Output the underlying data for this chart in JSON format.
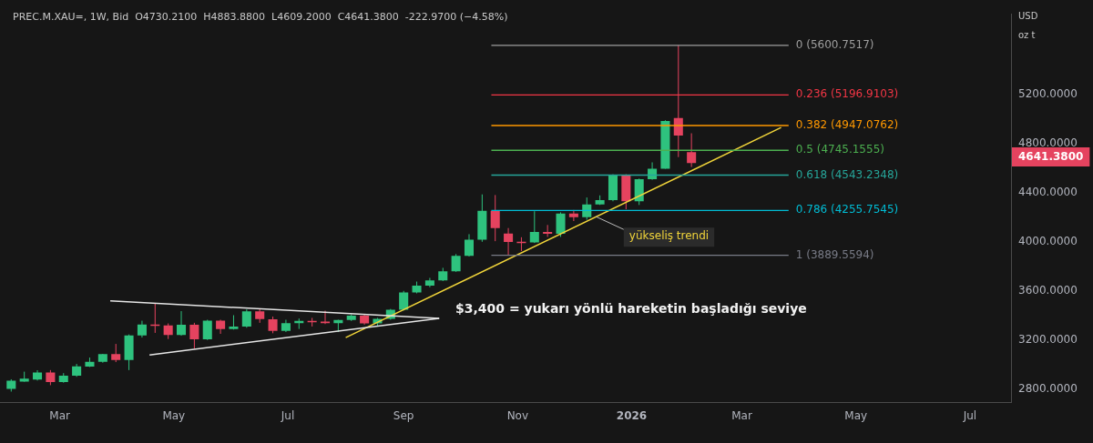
{
  "chart_data": {
    "type": "candlestick",
    "title": "PREC.M.XAU=, 1W, Bid  O4730.2100  H4883.8800  L4609.2000  C4641.3800  -222.9700 (−4.58%)",
    "x": [
      "2025-02-03",
      "2025-02-10",
      "2025-02-17",
      "2025-02-24",
      "2025-03-03",
      "2025-03-10",
      "2025-03-17",
      "2025-03-24",
      "2025-03-31",
      "2025-04-07",
      "2025-04-14",
      "2025-04-21",
      "2025-04-28",
      "2025-05-05",
      "2025-05-12",
      "2025-05-19",
      "2025-05-26",
      "2025-06-02",
      "2025-06-09",
      "2025-06-16",
      "2025-06-23",
      "2025-06-30",
      "2025-07-07",
      "2025-07-14",
      "2025-07-21",
      "2025-07-28",
      "2025-08-04",
      "2025-08-11",
      "2025-08-18",
      "2025-08-25",
      "2025-09-01",
      "2025-09-08",
      "2025-09-15",
      "2025-09-22",
      "2025-09-29",
      "2025-10-06",
      "2025-10-13",
      "2025-10-20",
      "2025-10-27",
      "2025-11-03",
      "2025-11-10",
      "2025-11-17",
      "2025-11-24",
      "2025-12-01",
      "2025-12-08",
      "2025-12-15",
      "2025-12-22",
      "2025-12-29",
      "2026-01-05",
      "2026-01-12",
      "2026-01-19",
      "2026-01-26",
      "2026-02-02"
    ],
    "ohlc": [
      [
        2802,
        2880,
        2780,
        2869
      ],
      [
        2862,
        2942,
        2860,
        2885
      ],
      [
        2877,
        2954,
        2870,
        2935
      ],
      [
        2935,
        2955,
        2832,
        2858
      ],
      [
        2858,
        2930,
        2852,
        2910
      ],
      [
        2910,
        3005,
        2900,
        2985
      ],
      [
        2984,
        3057,
        2980,
        3022
      ],
      [
        3022,
        3087,
        3015,
        3085
      ],
      [
        3085,
        3168,
        3020,
        3037
      ],
      [
        3037,
        3245,
        2955,
        3238
      ],
      [
        3238,
        3357,
        3220,
        3327
      ],
      [
        3327,
        3500,
        3258,
        3319
      ],
      [
        3319,
        3335,
        3208,
        3241
      ],
      [
        3241,
        3435,
        3235,
        3325
      ],
      [
        3325,
        3340,
        3130,
        3205
      ],
      [
        3205,
        3365,
        3200,
        3357
      ],
      [
        3357,
        3365,
        3250,
        3290
      ],
      [
        3290,
        3402,
        3285,
        3310
      ],
      [
        3310,
        3450,
        3300,
        3433
      ],
      [
        3433,
        3452,
        3340,
        3370
      ],
      [
        3368,
        3391,
        3255,
        3275
      ],
      [
        3275,
        3365,
        3265,
        3337
      ],
      [
        3337,
        3375,
        3290,
        3355
      ],
      [
        3355,
        3380,
        3310,
        3350
      ],
      [
        3350,
        3439,
        3330,
        3337
      ],
      [
        3337,
        3365,
        3265,
        3363
      ],
      [
        3363,
        3410,
        3355,
        3399
      ],
      [
        3399,
        3405,
        3325,
        3335
      ],
      [
        3335,
        3380,
        3310,
        3372
      ],
      [
        3372,
        3453,
        3365,
        3447
      ],
      [
        3447,
        3600,
        3440,
        3587
      ],
      [
        3587,
        3676,
        3580,
        3643
      ],
      [
        3643,
        3706,
        3630,
        3685
      ],
      [
        3685,
        3788,
        3680,
        3760
      ],
      [
        3760,
        3900,
        3755,
        3886
      ],
      [
        3886,
        4062,
        3880,
        4018
      ],
      [
        4018,
        4386,
        4000,
        4252
      ],
      [
        4252,
        4381,
        4005,
        4112
      ],
      [
        4067,
        4112,
        3889.56,
        3998
      ],
      [
        4000,
        4037,
        3925,
        3995
      ],
      [
        3995,
        4249,
        3990,
        4080
      ],
      [
        4080,
        4137,
        4040,
        4065
      ],
      [
        4065,
        4240,
        4040,
        4230
      ],
      [
        4230,
        4259,
        4169,
        4200
      ],
      [
        4200,
        4361,
        4180,
        4305
      ],
      [
        4305,
        4378,
        4300,
        4340
      ],
      [
        4340,
        4550,
        4330,
        4545
      ],
      [
        4545,
        4550,
        4265,
        4330
      ],
      [
        4330,
        4515,
        4300,
        4510
      ],
      [
        4510,
        4647,
        4505,
        4595
      ],
      [
        4595,
        4990,
        4595,
        4985
      ],
      [
        5008,
        5600.75,
        4690,
        4866
      ],
      [
        4730.21,
        4883.88,
        4609.2,
        4641.38
      ]
    ],
    "colors": [
      "#2ec27e",
      "#2ec27e",
      "#2ec27e",
      "#e5435f",
      "#2ec27e",
      "#2ec27e",
      "#2ec27e",
      "#2ec27e",
      "#e5435f",
      "#2ec27e",
      "#2ec27e",
      "#e5435f",
      "#e5435f",
      "#2ec27e",
      "#e5435f",
      "#2ec27e",
      "#e5435f",
      "#2ec27e",
      "#2ec27e",
      "#e5435f",
      "#e5435f",
      "#2ec27e",
      "#2ec27e",
      "#e5435f",
      "#e5435f",
      "#2ec27e",
      "#2ec27e",
      "#e5435f",
      "#2ec27e",
      "#2ec27e",
      "#2ec27e",
      "#2ec27e",
      "#2ec27e",
      "#2ec27e",
      "#2ec27e",
      "#2ec27e",
      "#2ec27e",
      "#e5435f",
      "#e5435f",
      "#e5435f",
      "#2ec27e",
      "#e5435f",
      "#2ec27e",
      "#e5435f",
      "#2ec27e",
      "#2ec27e",
      "#2ec27e",
      "#e5435f",
      "#2ec27e",
      "#2ec27e",
      "#2ec27e",
      "#e5435f",
      "#e5435f"
    ],
    "series": [
      {
        "type": "line",
        "color": "#e6e6e6",
        "x": [
          "2025-03-28",
          "2025-09-20"
        ],
        "values": [
          3519,
          3377
        ]
      },
      {
        "type": "line",
        "color": "#e6e6e6",
        "x": [
          "2025-04-18",
          "2025-09-20"
        ],
        "values": [
          3078,
          3377
        ]
      },
      {
        "type": "line",
        "color": "#f0d43a",
        "x": [
          "2025-08-01",
          "2026-03-22"
        ],
        "values": [
          3220,
          4931
        ]
      }
    ],
    "ref_lines": [
      {
        "axis": "y",
        "value": 5600.7517,
        "label": "0 (5600.7517)",
        "color": "#9e9e9e"
      },
      {
        "axis": "y",
        "value": 5196.9103,
        "label": "0.236 (5196.9103)",
        "color": "#f23645"
      },
      {
        "axis": "y",
        "value": 4947.0762,
        "label": "0.382 (4947.0762)",
        "color": "#ff9800"
      },
      {
        "axis": "y",
        "value": 4745.1555,
        "label": "0.5 (4745.1555)",
        "color": "#4caf50"
      },
      {
        "axis": "y",
        "value": 4543.2348,
        "label": "0.618 (4543.2348)",
        "color": "#26a69a"
      },
      {
        "axis": "y",
        "value": 4255.7545,
        "label": "0.786 (4255.7545)",
        "color": "#00bcd4"
      },
      {
        "axis": "y",
        "value": 3889.5594,
        "label": "1 (3889.5594)",
        "color": "#787b86"
      }
    ],
    "annotations": [
      "$3,400 = yukarı yönlü hareketin başladığı seviye",
      {
        "text": "yükseliş trendi",
        "x": "2025-12-13",
        "y": 4204
      },
      "4641.3800",
      "USD",
      "oz t"
    ],
    "xlim": [
      "2025-01-28",
      "2026-07-23"
    ],
    "xticks": [
      {
        "value": "2025-03-01",
        "label": "Mar"
      },
      {
        "value": "2025-05-01",
        "label": "May"
      },
      {
        "value": "2025-07-01",
        "label": "Jul"
      },
      {
        "value": "2025-09-01",
        "label": "Sep"
      },
      {
        "value": "2025-11-01",
        "label": "Nov"
      },
      {
        "value": "2026-01-01",
        "label": "2026"
      },
      {
        "value": "2026-03-01",
        "label": "Mar"
      },
      {
        "value": "2026-05-01",
        "label": "May"
      },
      {
        "value": "2026-07-01",
        "label": "Jul"
      }
    ],
    "ylim": [
      2690,
      5857
    ],
    "yticks": [
      {
        "value": 2800,
        "label": "2800.0000"
      },
      {
        "value": 3200,
        "label": "3200.0000"
      },
      {
        "value": 3600,
        "label": "3600.0000"
      },
      {
        "value": 4000,
        "label": "4000.0000"
      },
      {
        "value": 4400,
        "label": "4400.0000"
      },
      {
        "value": 4800,
        "label": "4800.0000"
      },
      {
        "value": 5200,
        "label": "5200.0000"
      }
    ],
    "grid": false,
    "legend": false
  }
}
